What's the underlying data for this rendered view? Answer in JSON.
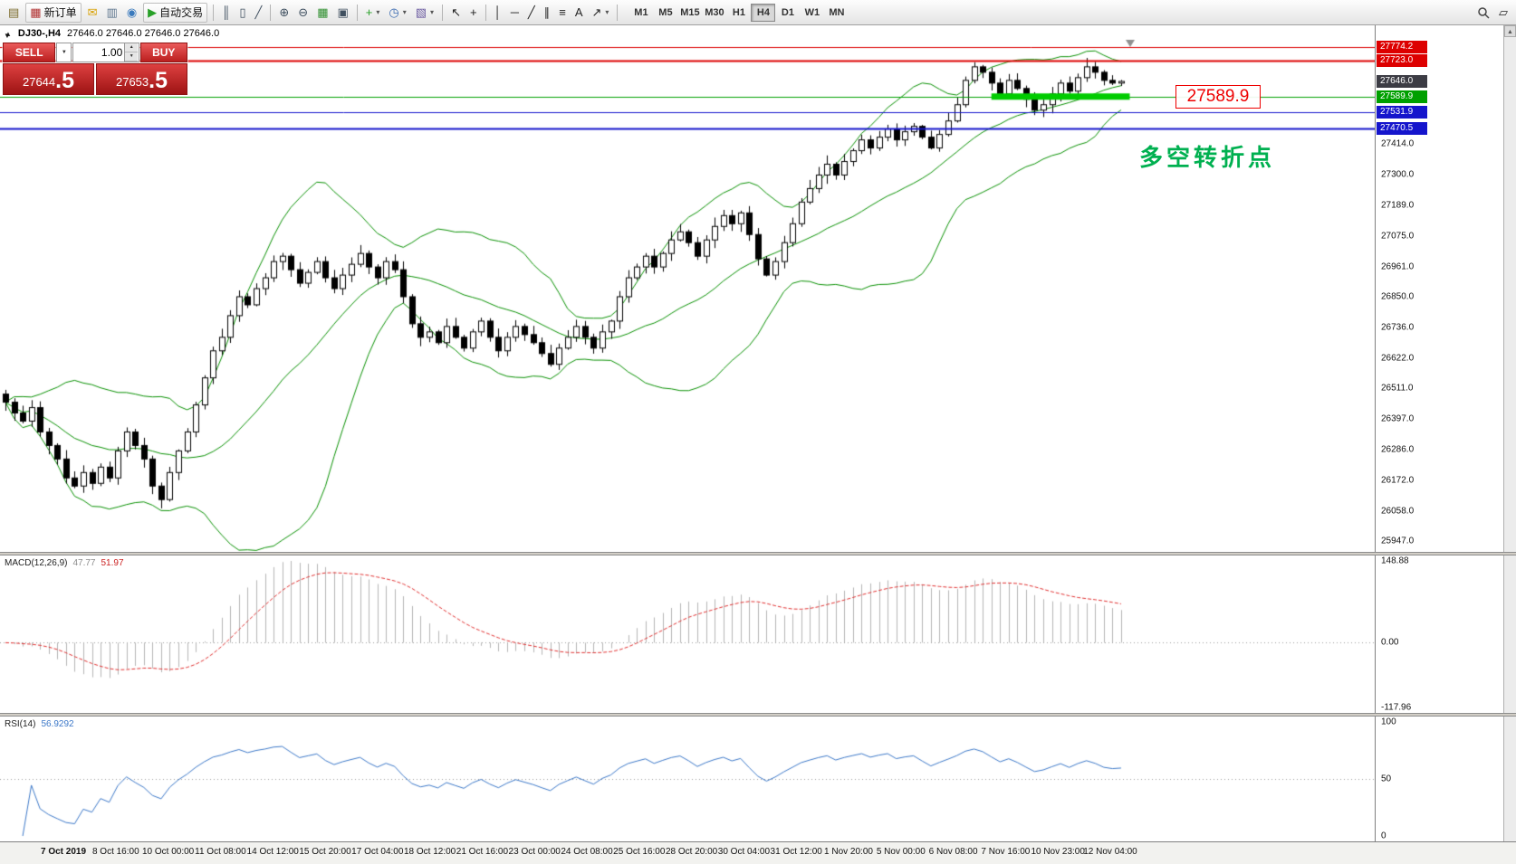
{
  "toolbar": {
    "items": [
      {
        "name": "new-chart-icon",
        "glyph": "▤",
        "color": "#7a6a2a"
      },
      {
        "name": "new-order-button",
        "glyph": "▦",
        "color": "#b03030",
        "label": "新订单"
      },
      {
        "name": "market-icon",
        "glyph": "✉",
        "color": "#d8a000"
      },
      {
        "name": "print-icon",
        "glyph": "▥",
        "color": "#607890"
      },
      {
        "name": "community-icon",
        "glyph": "◉",
        "color": "#3a7abd"
      },
      {
        "name": "autotrading-button",
        "glyph": "▶",
        "color": "#28a028",
        "label": "自动交易"
      },
      {
        "separator": true
      },
      {
        "name": "bar-chart-icon",
        "glyph": "║",
        "color": "#405060"
      },
      {
        "name": "candlestick-chart-icon",
        "glyph": "▯",
        "color": "#405060"
      },
      {
        "name": "line-chart-icon",
        "glyph": "╱",
        "color": "#405060"
      },
      {
        "separator": true
      },
      {
        "name": "zoom-in-icon",
        "glyph": "⊕",
        "color": "#405060"
      },
      {
        "name": "zoom-out-icon",
        "glyph": "⊖",
        "color": "#405060"
      },
      {
        "name": "grid-icon",
        "glyph": "▦",
        "color": "#2e8e2e"
      },
      {
        "name": "tile-windows-icon",
        "glyph": "▣",
        "color": "#405060"
      },
      {
        "separator": true
      },
      {
        "name": "indicators-button",
        "glyph": "+",
        "color": "#28a028",
        "dropdown": true
      },
      {
        "name": "periods-button",
        "glyph": "◷",
        "color": "#3a6ab0",
        "dropdown": true
      },
      {
        "name": "templates-button",
        "glyph": "▧",
        "color": "#6a5aa0",
        "dropdown": true
      },
      {
        "separator": true
      },
      {
        "name": "cursor-icon",
        "glyph": "↖",
        "color": "#222222"
      },
      {
        "name": "crosshair-icon",
        "glyph": "+",
        "color": "#222222"
      },
      {
        "separator": true
      },
      {
        "name": "vertical-line-icon",
        "glyph": "│",
        "color": "#222222"
      },
      {
        "name": "horizontal-line-icon",
        "glyph": "─",
        "color": "#222222"
      },
      {
        "name": "trendline-icon",
        "glyph": "╱",
        "color": "#222222"
      },
      {
        "name": "channel-icon",
        "glyph": "∥",
        "color": "#222222"
      },
      {
        "name": "fibonacci-icon",
        "glyph": "≡",
        "color": "#222222"
      },
      {
        "name": "text-icon",
        "glyph": "A",
        "color": "#222222"
      },
      {
        "name": "arrows-icon",
        "glyph": "↗",
        "color": "#222222",
        "dropdown": true
      },
      {
        "separator": true
      }
    ],
    "timeframes": {
      "options": [
        "M1",
        "M5",
        "M15",
        "M30",
        "H1",
        "H4",
        "D1",
        "W1",
        "MN"
      ],
      "active": "H4"
    },
    "layout_glyph": "▱"
  },
  "scrollbar": {
    "up_glyph": "▲"
  },
  "chart_header": {
    "arrow": "▲",
    "symbol_period": "DJ30-,H4",
    "ohlc": "27646.0 27646.0 27646.0 27646.0"
  },
  "trade_panel": {
    "collapse_glyph": "▼",
    "sell_label": "SELL",
    "buy_label": "BUY",
    "combo_glyph": "▼",
    "volume": "1.00",
    "spinner_up": "▲",
    "spinner_down": "▼",
    "sell_price_main": "27644",
    "sell_price_dec": ".5",
    "buy_price_main": "27653",
    "buy_price_dec": ".5"
  },
  "annotations": {
    "price_label": "27589.9",
    "turning_point": "多空转折点"
  },
  "chart_data": [
    {
      "type": "candlestick",
      "title": "DJ30-,H4",
      "symbol": "DJ30",
      "period": "H4",
      "x_labels": [
        "7 Oct 2019",
        "8 Oct 16:00",
        "10 Oct 00:00",
        "11 Oct 08:00",
        "14 Oct 12:00",
        "15 Oct 20:00",
        "17 Oct 04:00",
        "18 Oct 12:00",
        "21 Oct 16:00",
        "23 Oct 00:00",
        "24 Oct 08:00",
        "25 Oct 16:00",
        "28 Oct 20:00",
        "30 Oct 04:00",
        "31 Oct 12:00",
        "1 Nov 20:00",
        "5 Nov 00:00",
        "6 Nov 08:00",
        "7 Nov 16:00",
        "10 Nov 23:00",
        "12 Nov 04:00"
      ],
      "closes": [
        26460,
        26420,
        26390,
        26440,
        26350,
        26300,
        26250,
        26180,
        26150,
        26200,
        26160,
        26220,
        26180,
        26280,
        26350,
        26300,
        26250,
        26150,
        26100,
        26200,
        26280,
        26350,
        26450,
        26550,
        26650,
        26700,
        26780,
        26850,
        26820,
        26880,
        26920,
        26980,
        27000,
        26950,
        26900,
        26940,
        26980,
        26920,
        26880,
        26930,
        26970,
        27010,
        26960,
        26920,
        26980,
        26950,
        26850,
        26750,
        26700,
        26720,
        26680,
        26740,
        26700,
        26660,
        26720,
        26760,
        26700,
        26650,
        26700,
        26740,
        26710,
        26680,
        26640,
        26600,
        26660,
        26700,
        26740,
        26700,
        26660,
        26720,
        26760,
        26850,
        26920,
        26960,
        27000,
        26960,
        27010,
        27060,
        27090,
        27050,
        27000,
        27060,
        27110,
        27150,
        27120,
        27160,
        27080,
        26990,
        26930,
        26980,
        27050,
        27120,
        27200,
        27250,
        27300,
        27340,
        27300,
        27350,
        27390,
        27430,
        27400,
        27440,
        27470,
        27430,
        27460,
        27480,
        27440,
        27400,
        27450,
        27500,
        27560,
        27650,
        27700,
        27680,
        27640,
        27600,
        27650,
        27620,
        27580,
        27540,
        27560,
        27600,
        27640,
        27610,
        27660,
        27700,
        27680,
        27650,
        27640,
        27646
      ],
      "y_axis": {
        "min": 25920,
        "max": 27800,
        "ticks": [
          27414.0,
          27300.0,
          27189.0,
          27075.0,
          26961.0,
          26850.0,
          26736.0,
          26622.0,
          26511.0,
          26397.0,
          26286.0,
          26172.0,
          26058.0,
          25947.0
        ]
      },
      "hlines": [
        {
          "price": 27774.2,
          "color": "#dd0000",
          "width": 1
        },
        {
          "price": 27723.0,
          "color": "#dd0000",
          "width": 2
        },
        {
          "price": 27589.9,
          "color": "#00a000",
          "width": 1
        },
        {
          "price": 27531.9,
          "color": "#1515cc",
          "width": 1
        },
        {
          "price": 27470.5,
          "color": "#1515cc",
          "width": 2
        }
      ],
      "current_price": 27646.0,
      "current_price_box_color": "#3c3c44",
      "highlight_segment": {
        "price": 27589.9,
        "from_candle": 114,
        "to_candle": 130,
        "color": "#00cc00",
        "thickness": 7
      },
      "bollinger": {
        "period": 20,
        "deviation": 2,
        "color": "#089000"
      },
      "grid": false,
      "legend": false
    },
    {
      "type": "macd",
      "label": "MACD(12,26,9)",
      "fast": 12,
      "slow": 26,
      "signal_period": 9,
      "value_macd": "47.77",
      "value_signal": "51.97",
      "y_axis": {
        "max": 148.88,
        "zero": 0.0,
        "min": -117.96
      },
      "histogram_color": "#b4b4b4",
      "signal_color": "#e03030",
      "signal_style": "dashed"
    },
    {
      "type": "rsi",
      "label": "RSI(14)",
      "period": 14,
      "value": "56.9292",
      "y_axis": {
        "max": 100,
        "mid": 50,
        "min": 0
      },
      "line_color": "#3c78c8"
    }
  ]
}
